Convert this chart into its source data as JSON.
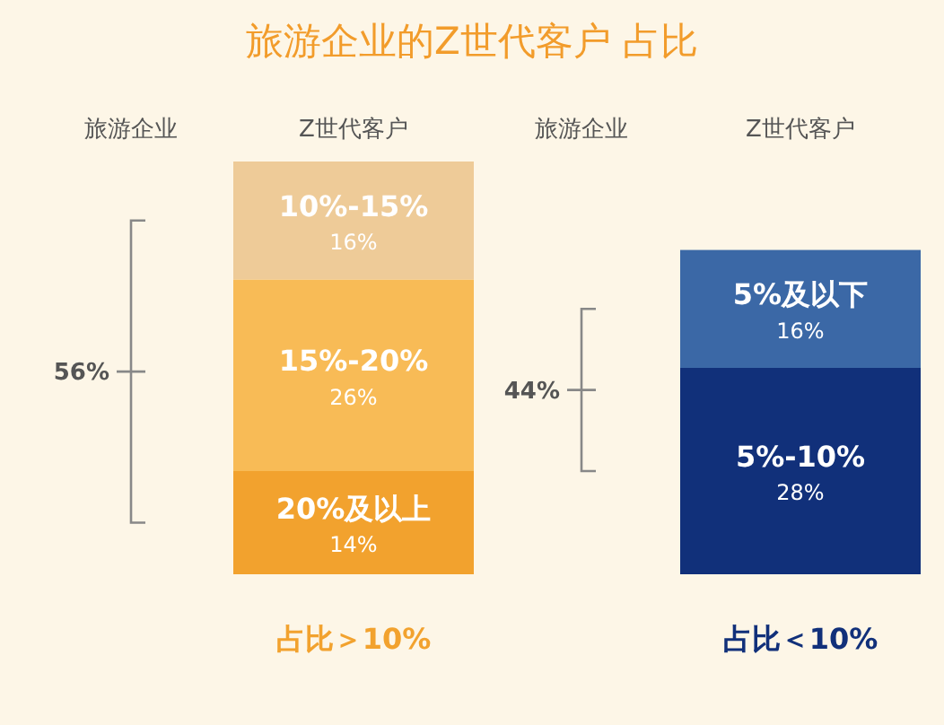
{
  "chart_data": [
    {
      "type": "bar",
      "title": "旅游企业的Z世代客户 占比",
      "stacked": true,
      "categories": [
        "占比＞10%"
      ],
      "annotations": [
        "旅游企业",
        "Z世代客户",
        "56%"
      ],
      "series": [
        {
          "name": "20%及以上",
          "color": "#f2a22e",
          "values": [
            14
          ],
          "value_labels": [
            "14%"
          ]
        },
        {
          "name": "15%-20%",
          "color": "#f8bb56",
          "values": [
            26
          ],
          "value_labels": [
            "26%"
          ]
        },
        {
          "name": "10%-15%",
          "color": "#eecb98",
          "values": [
            16
          ],
          "value_labels": [
            "16%"
          ]
        }
      ]
    },
    {
      "type": "bar",
      "stacked": true,
      "categories": [
        "占比＜10%"
      ],
      "annotations": [
        "旅游企业",
        "Z世代客户",
        "44%"
      ],
      "series": [
        {
          "name": "5%-10%",
          "color": "#11307a",
          "values": [
            28
          ],
          "value_labels": [
            "28%"
          ]
        },
        {
          "name": "5%及以下",
          "color": "#3b68a6",
          "values": [
            16
          ],
          "value_labels": [
            "16%"
          ]
        }
      ]
    }
  ]
}
